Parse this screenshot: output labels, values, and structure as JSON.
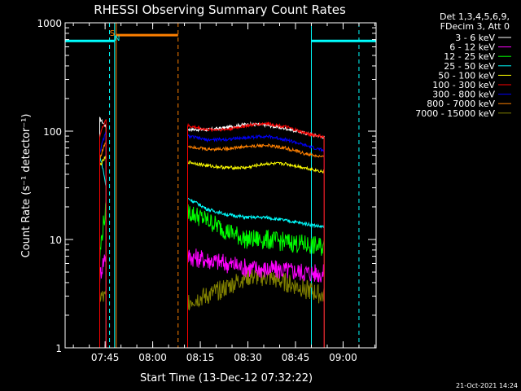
{
  "chart_data": {
    "type": "line",
    "title": "RHESSI Observing Summary Count Rates",
    "xlabel": "Start Time (13-Dec-12 07:32:22)",
    "ylabel": "Count Rate (s⁻¹ detector⁻¹)",
    "ylog": true,
    "ylim": [
      1,
      1000
    ],
    "xlim_min": [
      0,
      98
    ],
    "x_ticks": [
      {
        "label": "07:45",
        "min": 12.6
      },
      {
        "label": "08:00",
        "min": 27.6
      },
      {
        "label": "08:15",
        "min": 42.6
      },
      {
        "label": "08:30",
        "min": 57.6
      },
      {
        "label": "08:45",
        "min": 72.6
      },
      {
        "label": "09:00",
        "min": 87.6
      }
    ],
    "y_ticks": [
      {
        "label": "1",
        "value": 1
      },
      {
        "label": "10",
        "value": 10
      },
      {
        "label": "100",
        "value": 100
      },
      {
        "label": "1000",
        "value": 1000
      }
    ],
    "legend": {
      "placement": "right",
      "header": [
        "Det 1,3,4,5,6,9,",
        "FDecim 3, Att 0"
      ]
    },
    "series": [
      {
        "name": "3 - 6 keV",
        "color": "#ffffff",
        "values": [
          130,
          110,
          104,
          103,
          108,
          116,
          114,
          106,
          96,
          88
        ]
      },
      {
        "name": "6 - 12 keV",
        "color": "#ff00ff",
        "values": [
          4.5,
          7.5,
          7.0,
          6.5,
          6.0,
          5.5,
          5.3,
          5.2,
          5.0,
          4.8
        ]
      },
      {
        "name": "12 - 25 keV",
        "color": "#00ff00",
        "values": [
          6.5,
          19,
          18,
          15,
          12,
          10,
          10,
          9.5,
          9,
          8.5
        ]
      },
      {
        "name": "25 - 50 keV",
        "color": "#00ffff",
        "values": [
          60,
          30,
          24,
          19,
          17,
          16,
          16,
          15,
          14,
          13
        ]
      },
      {
        "name": "50 - 100 keV",
        "color": "#ffff00",
        "values": [
          48,
          58,
          52,
          48,
          46,
          46,
          50,
          50,
          46,
          42
        ]
      },
      {
        "name": "100 - 300 keV",
        "color": "#ff0000",
        "values": [
          90,
          130,
          112,
          103,
          104,
          112,
          118,
          110,
          96,
          88
        ]
      },
      {
        "name": "300 - 800 keV",
        "color": "#0000ff",
        "values": [
          63,
          98,
          90,
          83,
          84,
          87,
          90,
          84,
          74,
          66
        ]
      },
      {
        "name": "800 - 7000 keV",
        "color": "#ff8000",
        "values": [
          55,
          80,
          73,
          68,
          69,
          72,
          74,
          70,
          62,
          57
        ]
      },
      {
        "name": "7000 - 15000 keV",
        "color": "#808000",
        "values": [
          3.0,
          2.8,
          2.7,
          3.0,
          3.6,
          4.5,
          4.5,
          4.0,
          3.5,
          3.0
        ]
      }
    ],
    "segments": [
      {
        "start": 10.9,
        "end": 12.9,
        "n": 2
      },
      {
        "start": 38.6,
        "end": 81.6,
        "n": 8
      }
    ],
    "annotations": {
      "saa_label": "S",
      "night_label": "N",
      "saa_bar": {
        "start": 16.1,
        "end": 35.6,
        "value": 770
      },
      "night_bars": [
        {
          "start": 0,
          "end": 15.6,
          "value": 680
        },
        {
          "start": 77.6,
          "end": 98,
          "value": 680
        }
      ],
      "cyan_solid_min": [
        0,
        15.6,
        77.6
      ],
      "cyan_dashed_min": [
        14.0,
        92.6
      ],
      "orange_solid_min": [
        16.1
      ],
      "orange_dashed_min": [
        35.6
      ]
    },
    "footer_date": "21-Oct-2021 14:24",
    "grid": false
  }
}
